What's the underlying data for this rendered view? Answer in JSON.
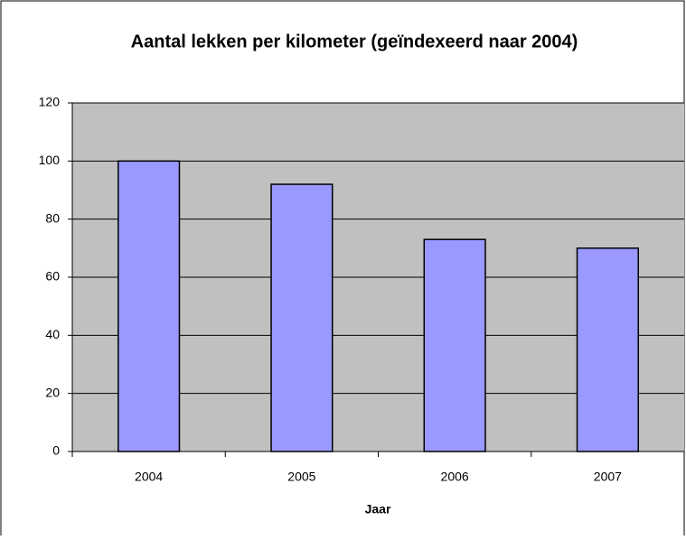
{
  "chart_data": {
    "type": "bar",
    "title": "Aantal lekken per kilometer (geïndexeerd naar 2004)",
    "x_label": "Jaar",
    "categories": [
      "2004",
      "2005",
      "2006",
      "2007"
    ],
    "values": [
      100,
      92,
      73,
      70
    ],
    "color": "#9999ff",
    "plot_background": "#c0c0c0",
    "ylim": [
      0,
      120
    ],
    "yticks": [
      0,
      20,
      40,
      60,
      80,
      100,
      120
    ],
    "grid": true
  }
}
